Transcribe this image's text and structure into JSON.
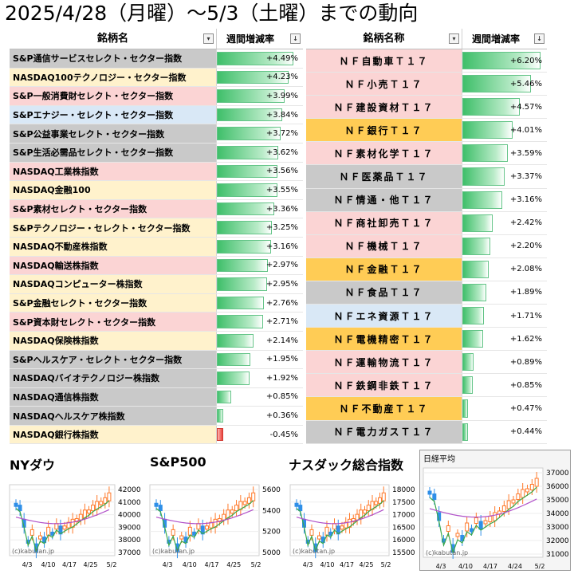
{
  "title": "2025/4/28（月曜）〜5/3（土曜）までの動向",
  "table_us": {
    "col_name": "銘柄名",
    "col_change": "週間増減率",
    "filter_icon": "▾",
    "sort_icon": "↓",
    "rows": [
      {
        "name": "S&P通信サービスセレクト・セクター指数",
        "value": "+4.49%",
        "pct": 4.49,
        "color": "gray"
      },
      {
        "name": "NASDAQ100テクノロジー・セクター指数",
        "value": "+4.23%",
        "pct": 4.23,
        "color": "yellow"
      },
      {
        "name": "S&P一般消費財セレクト・セクター指数",
        "value": "+3.99%",
        "pct": 3.99,
        "color": "pink"
      },
      {
        "name": "S&Pエナジー・セレクト・セクター指数",
        "value": "+3.84%",
        "pct": 3.84,
        "color": "blue"
      },
      {
        "name": "S&P公益事業セレクト・セクター指数",
        "value": "+3.72%",
        "pct": 3.72,
        "color": "gray"
      },
      {
        "name": "S&P生活必需品セレクト・セクター指数",
        "value": "+3.62%",
        "pct": 3.62,
        "color": "gray"
      },
      {
        "name": "NASDAQ工業株指数",
        "value": "+3.56%",
        "pct": 3.56,
        "color": "pink"
      },
      {
        "name": "NASDAQ金融100",
        "value": "+3.55%",
        "pct": 3.55,
        "color": "yellow"
      },
      {
        "name": "S&P素材セレクト・セクター指数",
        "value": "+3.36%",
        "pct": 3.36,
        "color": "pink"
      },
      {
        "name": "S&Pテクノロジー・セレクト・セクター指数",
        "value": "+3.25%",
        "pct": 3.25,
        "color": "yellow"
      },
      {
        "name": "NASDAQ不動産株指数",
        "value": "+3.16%",
        "pct": 3.16,
        "color": "yellow"
      },
      {
        "name": "NASDAQ輸送株指数",
        "value": "+2.97%",
        "pct": 2.97,
        "color": "pink"
      },
      {
        "name": "NASDAQコンピューター株指数",
        "value": "+2.95%",
        "pct": 2.95,
        "color": "yellow"
      },
      {
        "name": "S&P金融セレクト・セクター指数",
        "value": "+2.76%",
        "pct": 2.76,
        "color": "yellow"
      },
      {
        "name": "S&P資本財セレクト・セクター指数",
        "value": "+2.71%",
        "pct": 2.71,
        "color": "pink"
      },
      {
        "name": "NASDAQ保険株指数",
        "value": "+2.14%",
        "pct": 2.14,
        "color": "yellow"
      },
      {
        "name": "S&Pヘルスケア・セレクト・セクター指数",
        "value": "+1.95%",
        "pct": 1.95,
        "color": "gray"
      },
      {
        "name": "NASDAQバイオテクノロジー株指数",
        "value": "+1.92%",
        "pct": 1.92,
        "color": "gray"
      },
      {
        "name": "NASDAQ通信株指数",
        "value": "+0.85%",
        "pct": 0.85,
        "color": "gray"
      },
      {
        "name": "NASDAQヘルスケア株指数",
        "value": "+0.36%",
        "pct": 0.36,
        "color": "gray"
      },
      {
        "name": "NASDAQ銀行株指数",
        "value": "-0.45%",
        "pct": -0.45,
        "color": "yellow"
      }
    ]
  },
  "table_jp": {
    "col_name": "銘柄名称",
    "col_change": "週間増減率",
    "filter_icon": "▾",
    "sort_icon": "↓",
    "rows": [
      {
        "name": "ＮＦ自動車Ｔ１７",
        "value": "+6.20%",
        "pct": 6.2,
        "color": "pink"
      },
      {
        "name": "ＮＦ小売Ｔ１７",
        "value": "+5.46%",
        "pct": 5.46,
        "color": "pink"
      },
      {
        "name": "ＮＦ建設資材Ｔ１７",
        "value": "+4.57%",
        "pct": 4.57,
        "color": "pink"
      },
      {
        "name": "ＮＦ銀行Ｔ１７",
        "value": "+4.01%",
        "pct": 4.01,
        "color": "orange"
      },
      {
        "name": "ＮＦ素材化学Ｔ１７",
        "value": "+3.59%",
        "pct": 3.59,
        "color": "pink"
      },
      {
        "name": "ＮＦ医薬品Ｔ１７",
        "value": "+3.37%",
        "pct": 3.37,
        "color": "gray"
      },
      {
        "name": "ＮＦ情通・他Ｔ１７",
        "value": "+3.16%",
        "pct": 3.16,
        "color": "gray"
      },
      {
        "name": "ＮＦ商社卸売Ｔ１７",
        "value": "+2.42%",
        "pct": 2.42,
        "color": "pink"
      },
      {
        "name": "ＮＦ機械Ｔ１７",
        "value": "+2.20%",
        "pct": 2.2,
        "color": "pink"
      },
      {
        "name": "ＮＦ金融Ｔ１７",
        "value": "+2.08%",
        "pct": 2.08,
        "color": "orange"
      },
      {
        "name": "ＮＦ食品Ｔ１７",
        "value": "+1.89%",
        "pct": 1.89,
        "color": "gray"
      },
      {
        "name": "ＮＦエネ資源Ｔ１７",
        "value": "+1.71%",
        "pct": 1.71,
        "color": "blue"
      },
      {
        "name": "ＮＦ電機精密Ｔ１７",
        "value": "+1.62%",
        "pct": 1.62,
        "color": "orange"
      },
      {
        "name": "ＮＦ運輸物流Ｔ１７",
        "value": "+0.89%",
        "pct": 0.89,
        "color": "pink"
      },
      {
        "name": "ＮＦ鉄鋼非鉄Ｔ１７",
        "value": "+0.85%",
        "pct": 0.85,
        "color": "pink"
      },
      {
        "name": "ＮＦ不動産Ｔ１７",
        "value": "+0.47%",
        "pct": 0.47,
        "color": "orange"
      },
      {
        "name": "ＮＦ電力ガスＴ１７",
        "value": "+0.44%",
        "pct": 0.44,
        "color": "gray"
      }
    ]
  },
  "charts": [
    {
      "label": "NYダウ",
      "yticks": [
        "42000",
        "41000",
        "40000",
        "39000",
        "38000",
        "37000"
      ],
      "xticks": [
        "4/3",
        "4/10",
        "4/17",
        "4/25",
        "5/2"
      ],
      "credit": "(c)kabutan.jp"
    },
    {
      "label": "S&P500",
      "yticks": [
        "5600",
        "5400",
        "5200",
        "5000"
      ],
      "xticks": [
        "4/3",
        "4/10",
        "4/17",
        "4/25",
        "5/2"
      ],
      "credit": "(c)kabutan.jp"
    },
    {
      "label": "ナスダック総合指数",
      "yticks": [
        "18000",
        "17500",
        "17000",
        "16500",
        "16000",
        "15500"
      ],
      "xticks": [
        "4/3",
        "4/10",
        "4/17",
        "4/25",
        "5/2"
      ],
      "credit": "(c)kabutan.jp"
    },
    {
      "label": "日経平均",
      "yticks": [
        "37000",
        "36000",
        "35000",
        "34000",
        "33000",
        "32000",
        "31000"
      ],
      "xticks": [
        "4/3",
        "4/10",
        "4/17",
        "4/24",
        "5/2"
      ],
      "credit": "(c)kabutan.jp"
    }
  ],
  "colors": {
    "gray": "#c9c9c9",
    "yellow": "#fff2cc",
    "pink": "#fbd4d4",
    "blue": "#d9e8f6",
    "orange": "#ffcc55",
    "bar_up": "#3fbf6a",
    "bar_down": "#e8413c",
    "candle_up": "#ff7a2b",
    "candle_down": "#2f8fe8",
    "ma_short": "#3aa84a",
    "ma_long": "#b050c8"
  }
}
